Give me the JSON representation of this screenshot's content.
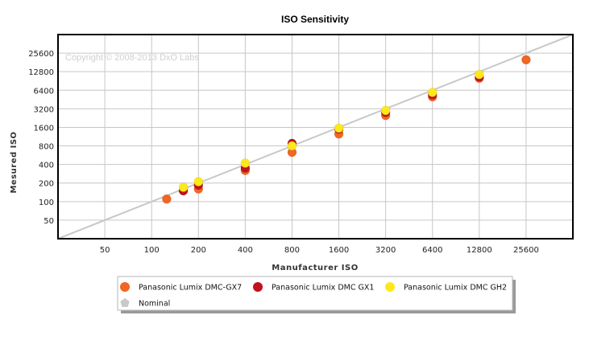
{
  "chart_data": {
    "type": "scatter",
    "title": "ISO Sensitivity",
    "xlabel": "Manufacturer ISO",
    "ylabel": "Mesured ISO",
    "copyright": "Copyright © 2008-2013 DxO Labs",
    "x_scale": "log2",
    "y_scale": "log2",
    "xlim": [
      25,
      51200
    ],
    "ylim": [
      25,
      51200
    ],
    "x_ticks": [
      50,
      100,
      200,
      400,
      800,
      1600,
      3200,
      6400,
      12800,
      25600
    ],
    "x_tick_labels": [
      "50",
      "100",
      "200",
      "400",
      "800",
      "1600",
      "3200",
      "6400",
      "12800",
      "25600"
    ],
    "y_ticks": [
      50,
      100,
      200,
      400,
      800,
      1600,
      3200,
      6400,
      12800,
      25600
    ],
    "y_tick_labels": [
      "50",
      "100",
      "200",
      "400",
      "800",
      "1600",
      "3200",
      "6400",
      "12800",
      "25600"
    ],
    "grid": true,
    "legend_position": "bottom",
    "series": [
      {
        "name": "Panasonic Lumix DMC-GX7",
        "color": "#f26522",
        "marker": "circle",
        "points": [
          [
            125,
            110
          ],
          [
            160,
            150
          ],
          [
            200,
            160
          ],
          [
            400,
            320
          ],
          [
            800,
            630
          ],
          [
            1600,
            1250
          ],
          [
            3200,
            2500
          ],
          [
            6400,
            5000
          ],
          [
            12800,
            10000
          ],
          [
            25600,
            20000
          ]
        ]
      },
      {
        "name": "Panasonic Lumix DMC GX1",
        "color": "#c1121f",
        "marker": "circle",
        "points": [
          [
            160,
            150
          ],
          [
            200,
            185
          ],
          [
            400,
            350
          ],
          [
            800,
            880
          ],
          [
            1600,
            1500
          ],
          [
            3200,
            2800
          ],
          [
            6400,
            5400
          ],
          [
            12800,
            10500
          ]
        ]
      },
      {
        "name": "Panasonic Lumix DMC GH2",
        "color": "#ffe81a",
        "marker": "circle",
        "points": [
          [
            160,
            170
          ],
          [
            200,
            210
          ],
          [
            400,
            420
          ],
          [
            800,
            800
          ],
          [
            1600,
            1550
          ],
          [
            3200,
            3000
          ],
          [
            6400,
            5900
          ],
          [
            12800,
            11500
          ]
        ]
      },
      {
        "name": "Nominal",
        "color": "#c8c8c8",
        "marker": "pentagon",
        "line": [
          [
            25,
            25
          ],
          [
            51200,
            51200
          ]
        ]
      }
    ]
  }
}
